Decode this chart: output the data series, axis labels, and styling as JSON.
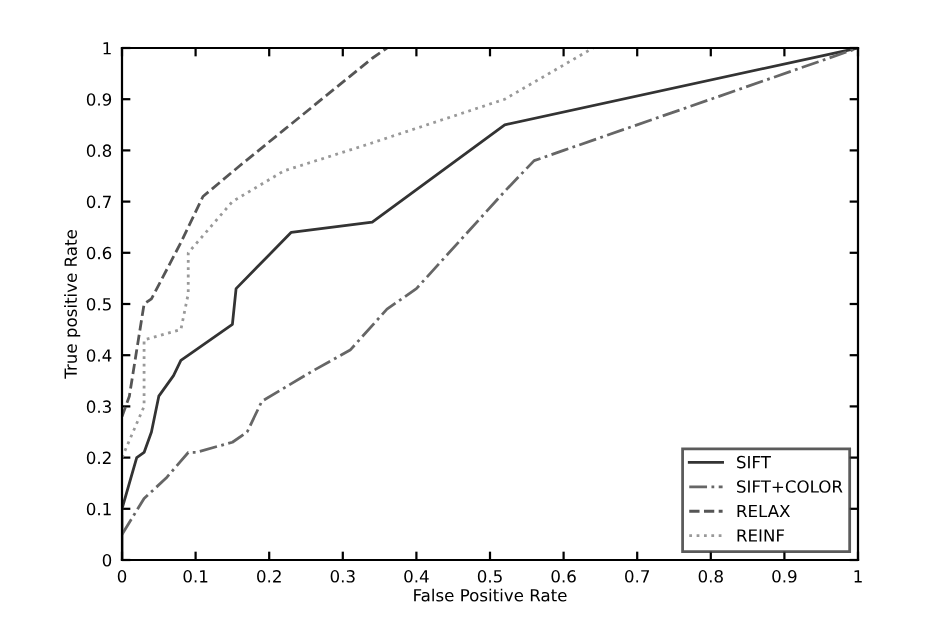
{
  "chart_data": {
    "type": "line",
    "xlabel": "False Positive Rate",
    "ylabel": "True positive Rate",
    "xlim": [
      0,
      1
    ],
    "ylim": [
      0,
      1
    ],
    "xticks": [
      0,
      0.1,
      0.2,
      0.3,
      0.4,
      0.5,
      0.6,
      0.7,
      0.8,
      0.9,
      1
    ],
    "yticks": [
      0,
      0.1,
      0.2,
      0.3,
      0.4,
      0.5,
      0.6,
      0.7,
      0.8,
      0.9,
      1
    ],
    "grid": false,
    "legend": "bottom right",
    "marker": "none",
    "series": [
      {
        "name": "SIFT",
        "color": "#333333",
        "line_style": "solid",
        "x": [
          0,
          0,
          0.02,
          0.03,
          0.04,
          0.05,
          0.07,
          0.08,
          0.1,
          0.15,
          0.155,
          0.23,
          0.34,
          0.52,
          1
        ],
        "values": [
          0,
          0.1,
          0.2,
          0.21,
          0.25,
          0.32,
          0.36,
          0.39,
          0.41,
          0.46,
          0.53,
          0.64,
          0.66,
          0.85,
          1
        ]
      },
      {
        "name": "SIFT+COLOR",
        "color": "#666666",
        "line_style": "dashdot",
        "x": [
          0,
          0.03,
          0.06,
          0.09,
          0.1,
          0.15,
          0.17,
          0.19,
          0.26,
          0.31,
          0.36,
          0.4,
          0.52,
          0.56,
          0.6,
          1
        ],
        "values": [
          0.05,
          0.12,
          0.16,
          0.21,
          0.21,
          0.23,
          0.25,
          0.31,
          0.37,
          0.41,
          0.49,
          0.53,
          0.72,
          0.78,
          0.8,
          1
        ]
      },
      {
        "name": "RELAX",
        "color": "#555555",
        "line_style": "dashed",
        "x": [
          0,
          0.01,
          0.02,
          0.03,
          0.04,
          0.08,
          0.11,
          0.16,
          0.22,
          0.34,
          0.36
        ],
        "values": [
          0.28,
          0.32,
          0.41,
          0.5,
          0.51,
          0.62,
          0.71,
          0.77,
          0.84,
          0.98,
          1
        ]
      },
      {
        "name": "REINF",
        "color": "#999999",
        "line_style": "dotted",
        "x": [
          0,
          0.03,
          0.03,
          0.08,
          0.09,
          0.09,
          0.15,
          0.22,
          0.33,
          0.52,
          0.64
        ],
        "values": [
          0.2,
          0.3,
          0.43,
          0.45,
          0.52,
          0.6,
          0.7,
          0.76,
          0.81,
          0.9,
          1
        ]
      }
    ]
  }
}
